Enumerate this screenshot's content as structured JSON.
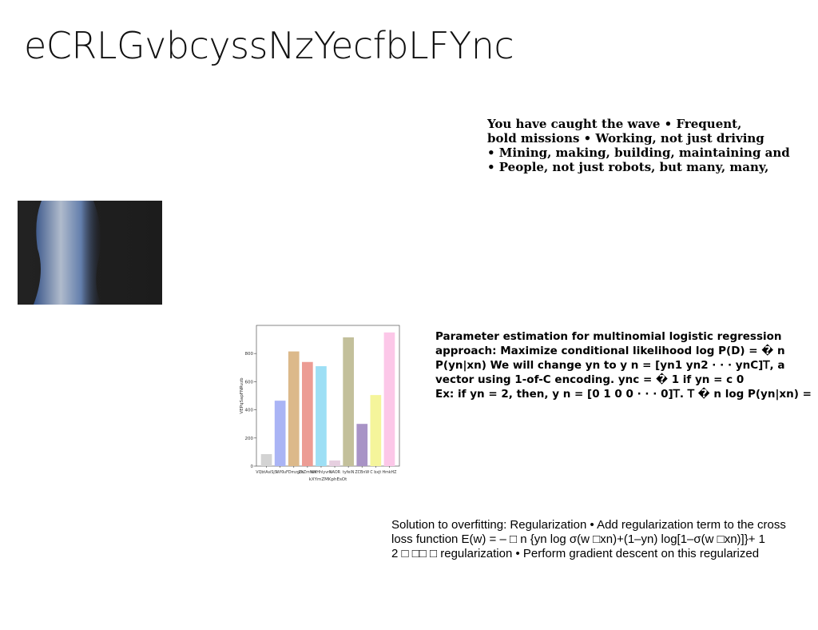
{
  "slide_title": "eCRLGvbcyssNzYecfbLFYnc",
  "block1": [
    "You have caught the wave • Frequent,",
    "bold missions • Working, not just driving",
    "• Mining, making, building, maintaining and",
    "• People, not just robots, but many, many,"
  ],
  "block2": [
    "Parameter estimation for multinomial logistic regression",
    "approach: Maximize conditional likelihood log P(D) = � n",
    "P(yn|xn) We will change yn to y n = [yn1 yn2 · · · ynC]𝖳, a",
    "vector using 1-of-C encoding. ync = � 1 if yn = c 0",
    "Ex: if yn = 2, then, y n = [0 1 0 0 · · · 0]𝖳. 𝖳 � n log P(yn|xn) ="
  ],
  "block3": [
    "Solution to overfitting: Regularization • Add regularization term to the cross",
    "loss function E(w) = – □ n {yn log σ(w □xn)+(1–yn) log[1–σ(w □xn)]}+ 1",
    "2 □ □□ □ regularization • Perform gradient descent on this regularized"
  ],
  "chart_data": {
    "type": "bar",
    "categories": [
      "VQbtAsiSjS",
      "Wf0",
      "uFDmzgch",
      "ZkZmfwx",
      "KMHhlyvrk",
      "NAOR",
      "tyfeiN",
      "ZCBnW",
      "C bxjt",
      "HmkHZ"
    ],
    "values": [
      85,
      465,
      815,
      740,
      710,
      40,
      915,
      300,
      505,
      950
    ],
    "colors": [
      "#d3d3d3",
      "#aab4f5",
      "#dcb98a",
      "#ec9c94",
      "#9ddff5",
      "#e6cfe0",
      "#c3c09b",
      "#a893c6",
      "#f5f59b",
      "#fcc7e8"
    ],
    "x_label": "kXYmZMKphEsOt",
    "y_label": "VEPqSapFNRvzb",
    "ylim": [
      0,
      1000
    ],
    "yticks": [
      0,
      200,
      400,
      600,
      800
    ]
  }
}
